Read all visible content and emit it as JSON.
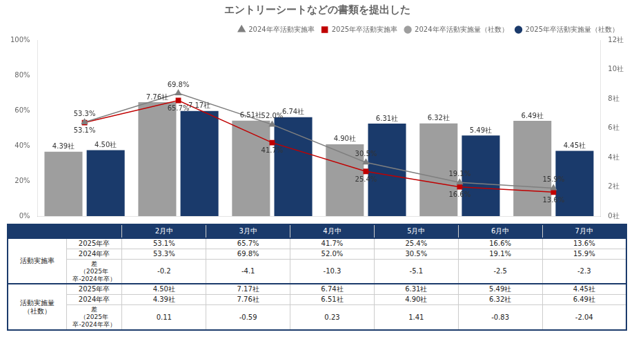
{
  "chart_data": {
    "type": "bar",
    "title": "エントリーシートなどの書類を提出した",
    "categories": [
      "2月中",
      "3月中",
      "4月中",
      "5月中",
      "6月中",
      "7月中"
    ],
    "series": [
      {
        "name": "2024年卒活動実施量（社数）",
        "type": "bar",
        "axis": "y2",
        "color": "#9e9e9e",
        "values": [
          4.39,
          7.76,
          6.51,
          4.9,
          6.32,
          6.49
        ],
        "value_labels": [
          "4.39社",
          "7.76社",
          "6.51社",
          "4.90社",
          "6.32社",
          "6.49社"
        ]
      },
      {
        "name": "2025年卒活動実施量（社数）",
        "type": "bar",
        "axis": "y2",
        "color": "#1a3a6b",
        "values": [
          4.5,
          7.17,
          6.74,
          6.31,
          5.49,
          4.45
        ],
        "value_labels": [
          "4.50社",
          "7.17社",
          "6.74社",
          "6.31社",
          "5.49社",
          "4.45社"
        ]
      },
      {
        "name": "2024年卒活動実施率",
        "type": "line",
        "color": "#7f7f7f",
        "marker": "triangle",
        "values": [
          53.3,
          69.8,
          52.0,
          30.5,
          19.1,
          15.9
        ],
        "value_labels": [
          "53.3%",
          "69.8%",
          "52.0%",
          "30.5%",
          "19.1%",
          "15.9%"
        ]
      },
      {
        "name": "2025年卒活動実施率",
        "type": "line",
        "color": "#c00000",
        "marker": "square",
        "values": [
          53.1,
          65.7,
          41.7,
          25.4,
          16.6,
          13.6
        ],
        "value_labels": [
          "53.1%",
          "65.7%",
          "41.7%",
          "25.4%",
          "16.6%",
          "13.6%"
        ]
      }
    ],
    "ylim": [
      0,
      100
    ],
    "yticks": [
      {
        "value": 0,
        "label": "0%"
      },
      {
        "value": 20,
        "label": "20%"
      },
      {
        "value": 40,
        "label": "40%"
      },
      {
        "value": 60,
        "label": "60%"
      },
      {
        "value": 80,
        "label": "80%"
      },
      {
        "value": 100,
        "label": "100%"
      }
    ],
    "y2lim": [
      0,
      12
    ],
    "y2ticks": [
      {
        "value": 0,
        "label": "0社"
      },
      {
        "value": 2,
        "label": "2社"
      },
      {
        "value": 4,
        "label": "4社"
      },
      {
        "value": 6,
        "label": "6社"
      },
      {
        "value": 8,
        "label": "8社"
      },
      {
        "value": 10,
        "label": "10社"
      },
      {
        "value": 12,
        "label": "12社"
      }
    ],
    "grid": false,
    "legend": "upper right",
    "data_labels": true,
    "tick_labels": "y",
    "table": {
      "color": "#1a3a6b",
      "groups": [
        {
          "name": "活動実施率",
          "rows": [
            {
              "label": "2025年卒",
              "cells": [
                "53.1%",
                "65.7%",
                "41.7%",
                "25.4%",
                "16.6%",
                "13.6%"
              ]
            },
            {
              "label": "2024年卒",
              "cells": [
                "53.3%",
                "69.8%",
                "52.0%",
                "30.5%",
                "19.1%",
                "15.9%"
              ]
            },
            {
              "label": "差\n（2025年卒-2024年卒）",
              "cells": [
                "-0.2",
                "-4.1",
                "-10.3",
                "-5.1",
                "-2.5",
                "-2.3"
              ]
            }
          ]
        },
        {
          "name": "活動実施量\n（社数）",
          "rows": [
            {
              "label": "2025年卒",
              "cells": [
                "4.50社",
                "7.17社",
                "6.74社",
                "6.31社",
                "5.49社",
                "4.45社"
              ]
            },
            {
              "label": "2024年卒",
              "cells": [
                "4.39社",
                "7.76社",
                "6.51社",
                "4.90社",
                "6.32社",
                "6.49社"
              ]
            },
            {
              "label": "差\n（2025年卒-2024年卒）",
              "cells": [
                "0.11",
                "-0.59",
                "0.23",
                "1.41",
                "-0.83",
                "-2.04"
              ]
            }
          ]
        }
      ]
    }
  }
}
